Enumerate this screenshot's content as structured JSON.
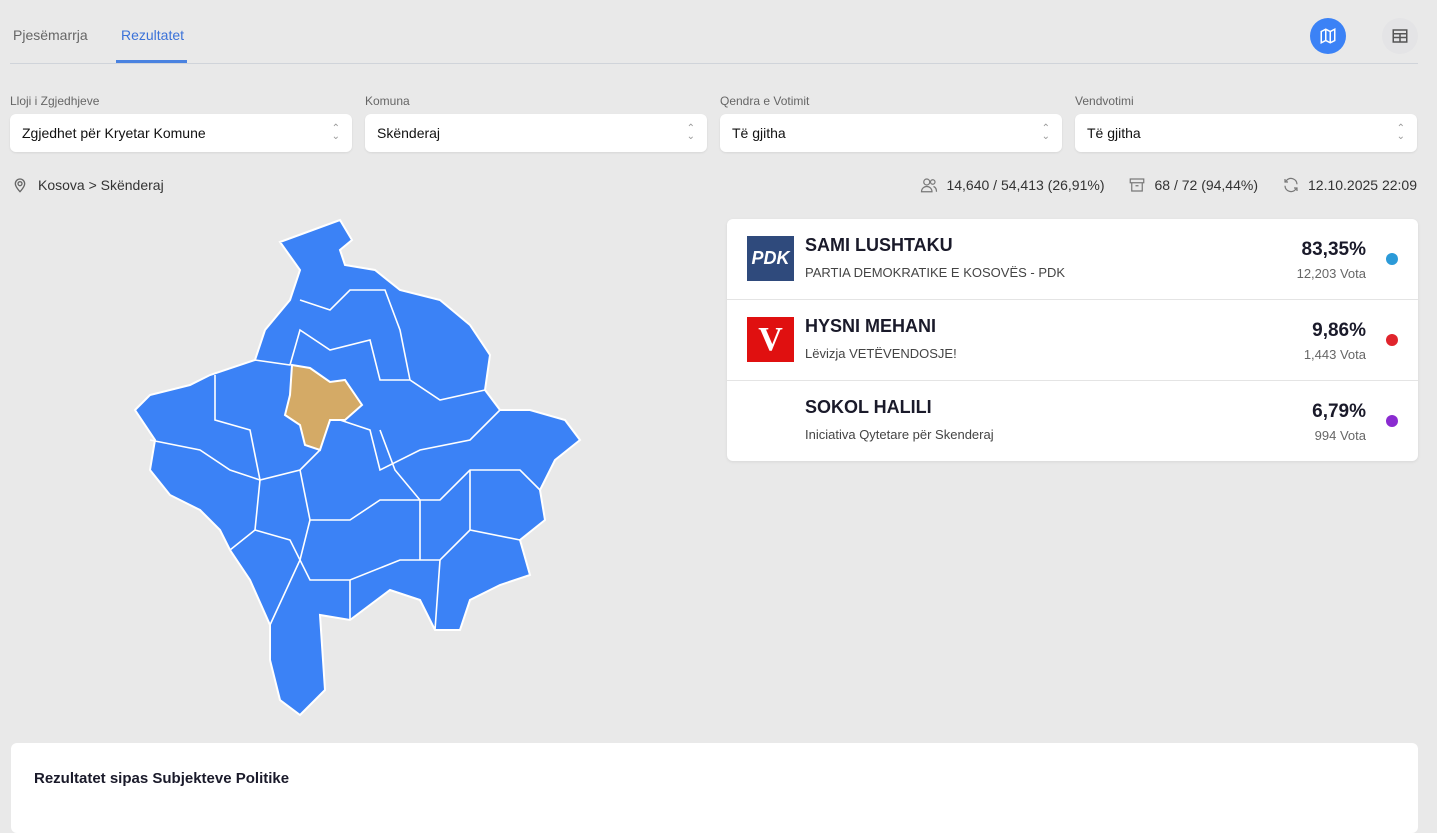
{
  "tabs": [
    {
      "label": "Pjesëmarrja",
      "active": false
    },
    {
      "label": "Rezultatet",
      "active": true
    }
  ],
  "view_toggle": {
    "active": "map-icon",
    "options": [
      "map-icon",
      "table-icon"
    ],
    "accent": "#3b82f6"
  },
  "filters": [
    {
      "label": "Lloji i Zgjedhjeve",
      "value": "Zgjedhet për Kryetar Komune"
    },
    {
      "label": "Komuna",
      "value": "Skënderaj"
    },
    {
      "label": "Qendra e Votimit",
      "value": "Të gjitha"
    },
    {
      "label": "Vendvotimi",
      "value": "Të gjitha"
    }
  ],
  "breadcrumb": "Kosova > Skënderaj",
  "stats": {
    "turnout": "14,640 / 54,413 (26,91%)",
    "stations": "68 / 72 (94,44%)",
    "updated": "12.10.2025 22:09"
  },
  "map": {
    "base_color": "#3b82f6",
    "highlight_color": "#d4aa66",
    "highlighted": "Skënderaj"
  },
  "candidates": [
    {
      "name": "SAMI LUSHTAKU",
      "party": "PARTIA DEMOKRATIKE E KOSOVËS - PDK",
      "percent": "83,35%",
      "votes": "12,203 Vota",
      "color": "#2b9ad8",
      "logo_text": "PDK",
      "logo_bg": "#2f4a7c"
    },
    {
      "name": "HYSNI MEHANI",
      "party": "Lëvizja VETËVENDOSJE!",
      "percent": "9,86%",
      "votes": "1,443 Vota",
      "color": "#e0242c",
      "logo_text": "V",
      "logo_bg": "#e01010"
    },
    {
      "name": "SOKOL HALILI",
      "party": "Iniciativa Qytetare për Skenderaj",
      "percent": "6,79%",
      "votes": "994 Vota",
      "color": "#8a2bd0"
    }
  ],
  "section_title": "Rezultatet sipas Subjekteve Politike"
}
